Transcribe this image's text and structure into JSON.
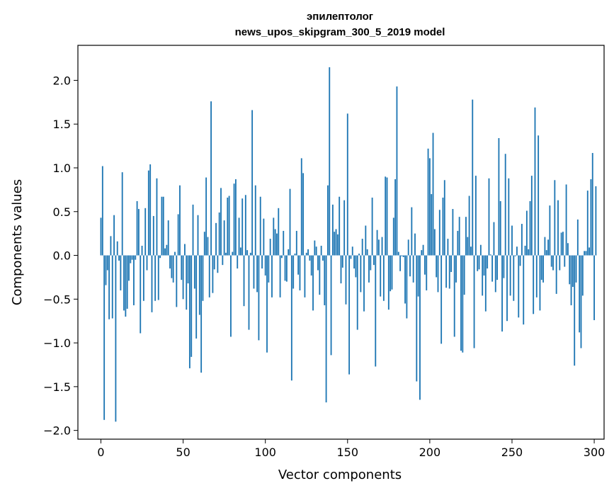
{
  "chart_data": {
    "type": "bar",
    "title": "эпилептолог",
    "subtitle": "news_upos_skipgram_300_5_2019 model",
    "xlabel": "Vector components",
    "ylabel": "Components values",
    "xlim": [
      -14,
      306
    ],
    "ylim": [
      -2.1,
      2.4
    ],
    "xticks": [
      0,
      50,
      100,
      150,
      200,
      250,
      300
    ],
    "yticks": [
      -2.0,
      -1.5,
      -1.0,
      -0.5,
      0.0,
      0.5,
      1.0,
      1.5,
      2.0
    ],
    "ytick_labels": [
      "−2.0",
      "−1.5",
      "−1.0",
      "−0.5",
      "0.0",
      "0.5",
      "1.0",
      "1.5",
      "2.0"
    ],
    "xtick_labels": [
      "0",
      "50",
      "100",
      "150",
      "200",
      "250",
      "300"
    ],
    "bar_color": "#1f77b4",
    "values": [
      0.43,
      1.02,
      -1.88,
      -0.34,
      -0.17,
      -0.73,
      0.22,
      -0.72,
      0.46,
      -1.9,
      0.16,
      -0.06,
      -0.4,
      0.95,
      -0.63,
      -0.7,
      -0.61,
      -0.29,
      -0.09,
      -0.05,
      -0.57,
      -0.05,
      0.62,
      0.53,
      -0.89,
      0.11,
      -0.52,
      0.54,
      -0.17,
      0.97,
      1.04,
      -0.65,
      0.45,
      -0.52,
      0.88,
      -0.51,
      -0.03,
      0.67,
      0.67,
      0.08,
      0.12,
      0.4,
      -0.15,
      -0.26,
      -0.31,
      0.04,
      -0.59,
      0.47,
      0.8,
      -0.28,
      -0.5,
      0.13,
      -0.62,
      -0.32,
      -1.29,
      -1.16,
      0.58,
      -0.38,
      -0.95,
      0.46,
      -0.68,
      -1.34,
      -0.52,
      0.27,
      0.89,
      0.21,
      -0.48,
      1.76,
      -0.43,
      -0.16,
      0.37,
      -0.2,
      0.49,
      0.77,
      -0.11,
      0.4,
      0.03,
      0.66,
      0.68,
      -0.93,
      0.04,
      0.82,
      0.87,
      -0.15,
      0.43,
      0.09,
      0.65,
      -0.58,
      0.69,
      0.06,
      -0.85,
      0.03,
      1.66,
      -0.38,
      0.8,
      -0.42,
      -0.97,
      0.67,
      -0.15,
      0.42,
      -0.23,
      -1.11,
      -0.31,
      0.19,
      -0.48,
      0.43,
      0.3,
      0.25,
      0.54,
      -0.48,
      -0.03,
      0.28,
      -0.29,
      -0.3,
      0.07,
      0.76,
      -1.43,
      -0.38,
      0.02,
      0.28,
      -0.22,
      -0.4,
      1.11,
      0.94,
      -0.48,
      0.03,
      0.07,
      -0.06,
      -0.23,
      -0.63,
      0.17,
      0.1,
      -0.17,
      -0.45,
      0.11,
      -0.06,
      -0.57,
      -1.68,
      0.8,
      2.15,
      -1.14,
      0.58,
      0.27,
      0.3,
      0.24,
      0.67,
      -0.32,
      -0.14,
      0.63,
      -0.56,
      1.62,
      -1.36,
      -0.04,
      0.1,
      -0.15,
      -0.25,
      -0.85,
      0.02,
      -0.42,
      0.19,
      -0.64,
      0.34,
      0.07,
      -0.31,
      -0.17,
      0.66,
      -0.11,
      -1.27,
      0.29,
      0.18,
      -0.47,
      0.21,
      -0.52,
      0.9,
      0.89,
      -0.62,
      -0.41,
      -0.39,
      0.43,
      0.87,
      1.93,
      0.04,
      -0.18,
      -0.01,
      -0.02,
      -0.55,
      -0.72,
      0.18,
      -0.24,
      0.55,
      -0.31,
      0.25,
      -1.44,
      -0.47,
      -1.65,
      0.06,
      0.12,
      -0.22,
      -0.4,
      1.22,
      1.11,
      0.7,
      1.4,
      0.3,
      -0.25,
      -0.42,
      0.52,
      -1.01,
      0.66,
      0.86,
      -0.37,
      0.19,
      -0.38,
      -0.19,
      0.53,
      -0.93,
      -0.31,
      0.28,
      0.44,
      -1.09,
      -1.11,
      -0.45,
      0.44,
      0.21,
      0.68,
      0.1,
      1.78,
      -1.06,
      0.91,
      -0.18,
      -0.16,
      0.12,
      -0.46,
      -0.23,
      -0.64,
      -0.15,
      0.88,
      0.01,
      -0.3,
      0.38,
      -0.42,
      -0.28,
      1.34,
      0.62,
      -0.87,
      -0.26,
      1.16,
      -0.75,
      0.88,
      -0.46,
      0.34,
      -0.52,
      -0.01,
      0.1,
      -0.71,
      -0.12,
      0.36,
      -0.79,
      0.11,
      0.51,
      0.07,
      0.62,
      0.91,
      -0.67,
      1.69,
      -0.48,
      1.37,
      -0.63,
      -0.28,
      -0.31,
      0.21,
      0.06,
      0.18,
      0.57,
      -0.13,
      -0.17,
      0.86,
      -0.44,
      0.63,
      -0.17,
      0.26,
      0.27,
      -0.13,
      0.81,
      0.14,
      -0.33,
      -0.57,
      -0.36,
      -1.26,
      -0.31,
      0.41,
      -0.88,
      -1.06,
      -0.46,
      0.05,
      0.05,
      0.74,
      0.09,
      0.87,
      1.17,
      -0.74,
      0.79
    ]
  }
}
